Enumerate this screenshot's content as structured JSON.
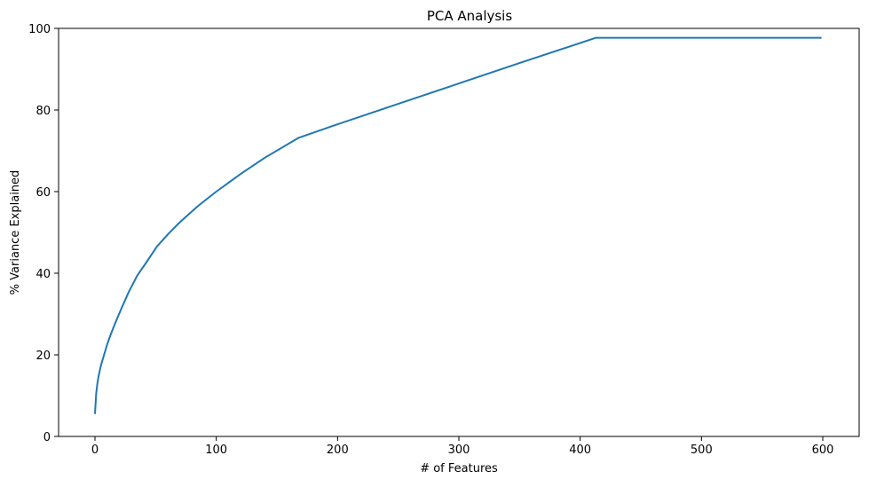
{
  "chart_data": {
    "type": "line",
    "title": "PCA Analysis",
    "xlabel": "# of Features",
    "ylabel": "% Variance Explained",
    "xlim": [
      -30,
      630
    ],
    "ylim": [
      0,
      100
    ],
    "xticks": [
      0,
      100,
      200,
      300,
      400,
      500,
      600
    ],
    "yticks": [
      0,
      20,
      40,
      60,
      80,
      100
    ],
    "grid": false,
    "series": [
      {
        "color": "#1f77b4",
        "x": [
          0,
          1,
          2,
          3,
          5,
          7,
          10,
          13,
          17,
          22,
          28,
          35,
          42,
          51,
          60,
          70,
          85,
          100,
          120,
          140,
          168,
          200,
          250,
          300,
          350,
          413,
          450,
          500,
          550,
          599
        ],
        "y": [
          5.5,
          10.5,
          13.0,
          14.8,
          17.5,
          19.5,
          22.5,
          25.0,
          28.0,
          31.5,
          35.5,
          39.5,
          42.5,
          46.5,
          49.5,
          52.5,
          56.5,
          60.0,
          64.3,
          68.3,
          73.2,
          76.5,
          81.5,
          86.5,
          91.5,
          97.7,
          97.7,
          97.7,
          97.7,
          97.7
        ]
      }
    ]
  }
}
